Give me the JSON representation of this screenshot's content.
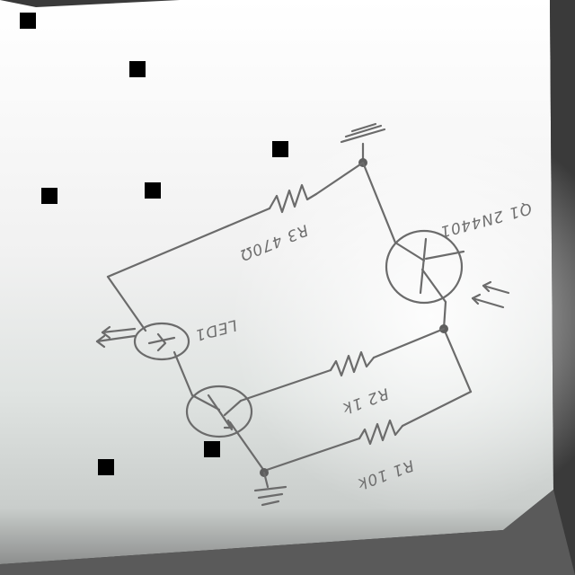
{
  "labels": {
    "r3": "R3 470Ω",
    "r2": "R2 1k",
    "r1": "R1 10k",
    "q1": "Q1 2N4401",
    "led": "LED1"
  },
  "colors": {
    "paper": "#f2f2f2",
    "ink": "#6b6b6b",
    "frame": "#3a3a3a"
  }
}
